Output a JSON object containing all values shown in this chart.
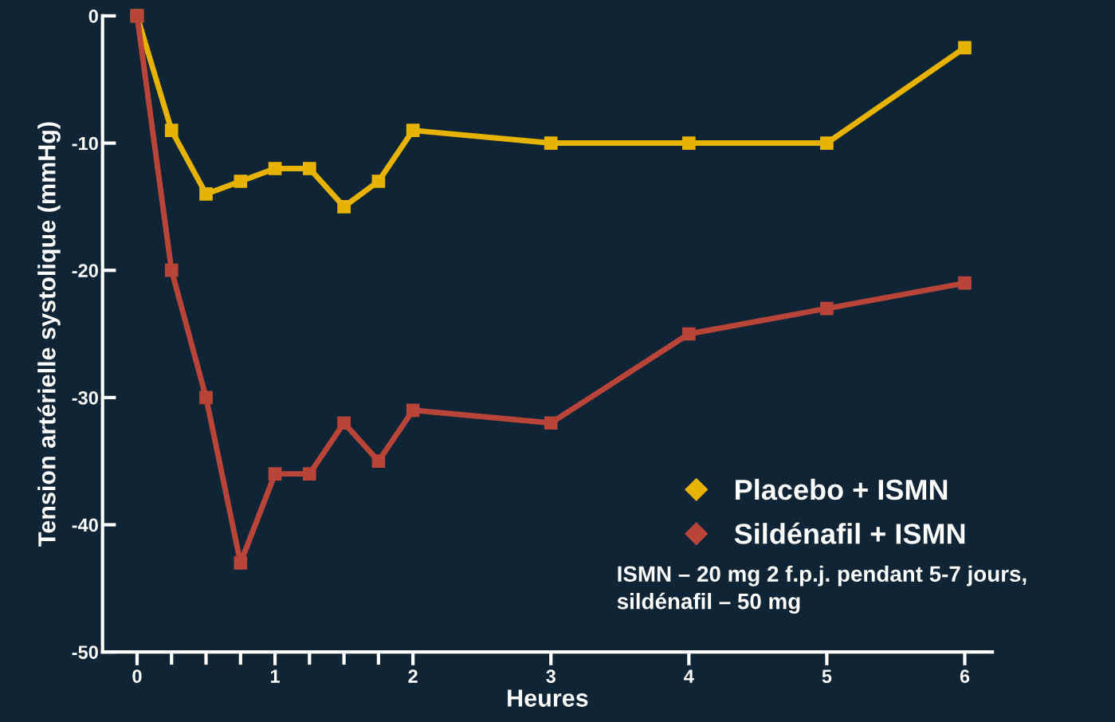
{
  "chart_data": {
    "type": "line",
    "xlabel": "Heures",
    "ylabel": "Tension artérielle systolique (mmHg)",
    "x": [
      0,
      0.25,
      0.5,
      0.75,
      1,
      1.25,
      1.5,
      1.75,
      2,
      3,
      4,
      5,
      6
    ],
    "series": [
      {
        "name": "Placebo + ISMN",
        "color": "#e6b400",
        "values": [
          0,
          -9,
          -14,
          -13,
          -12,
          -12,
          -15,
          -13,
          -9,
          -10,
          -10,
          -10,
          -2.5
        ]
      },
      {
        "name": "Sildénafil + ISMN",
        "color": "#b8443a",
        "values": [
          0,
          -20,
          -30,
          -43,
          -36,
          -36,
          -32,
          -35,
          -31,
          -32,
          -25,
          -23,
          -21
        ]
      }
    ],
    "xlim": [
      -0.25,
      6.2
    ],
    "ylim": [
      -50,
      0
    ],
    "xticks": [
      0,
      {
        "value": 0.25,
        "label": null
      },
      {
        "value": 0.5,
        "label": null
      },
      {
        "value": 0.75,
        "label": null
      },
      1,
      {
        "value": 1.25,
        "label": null
      },
      {
        "value": 1.5,
        "label": null
      },
      {
        "value": 1.75,
        "label": null
      },
      2,
      3,
      4,
      5,
      6
    ],
    "yticks": [
      -50,
      -40,
      -30,
      -20,
      -10,
      0
    ],
    "marker": "square",
    "line_style": "solid",
    "grid": false,
    "legend": "bottom right",
    "annotations": [
      "ISMN – 20 mg 2 f.p.j. pendant 5-7 jours,\nsildénafil – 50 mg"
    ]
  }
}
